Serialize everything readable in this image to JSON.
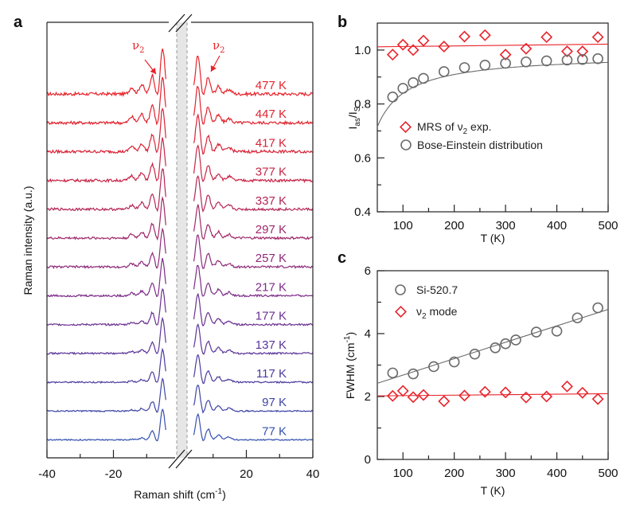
{
  "figure": {
    "panels": [
      "a",
      "b",
      "c"
    ]
  },
  "chart_data": [
    {
      "id": "a",
      "type": "line",
      "panel_label": "a",
      "title": "",
      "xlabel": "Raman shift (cm⁻¹)",
      "xlabel_main": "Raman shift (cm",
      "xlabel_sup": "-1",
      "xlabel_close": ")",
      "ylabel": "Raman intensity (a.u.)",
      "xlim": [
        -40,
        40
      ],
      "axis_break": [
        -5,
        5
      ],
      "xticks": [
        -40,
        -20,
        20,
        40
      ],
      "xtick_labels": [
        "-40",
        "-20",
        "20",
        "40"
      ],
      "minor_xticks": [
        -30,
        -10,
        10,
        30
      ],
      "shaded_band": [
        -2,
        1
      ],
      "annotations": [
        {
          "text": "ν",
          "sub": "2",
          "side": "anti-Stokes",
          "x": -7.5
        },
        {
          "text": "ν",
          "sub": "2",
          "side": "Stokes",
          "x": 7.5
        }
      ],
      "series": [
        {
          "name": "477 K",
          "temperature": 477,
          "color": "#e8232b"
        },
        {
          "name": "447 K",
          "temperature": 447,
          "color": "#e1232f"
        },
        {
          "name": "417 K",
          "temperature": 417,
          "color": "#d82337"
        },
        {
          "name": "377 K",
          "temperature": 377,
          "color": "#c82547"
        },
        {
          "name": "337 K",
          "temperature": 337,
          "color": "#b42654"
        },
        {
          "name": "297 K",
          "temperature": 297,
          "color": "#a0286a"
        },
        {
          "name": "257 K",
          "temperature": 257,
          "color": "#8e2a7a"
        },
        {
          "name": "217 K",
          "temperature": 217,
          "color": "#7c2c88"
        },
        {
          "name": "177 K",
          "temperature": 177,
          "color": "#6a3090"
        },
        {
          "name": "137 K",
          "temperature": 137,
          "color": "#5a3598"
        },
        {
          "name": "117 K",
          "temperature": 117,
          "color": "#4a3a9e"
        },
        {
          "name": "97 K",
          "temperature": 97,
          "color": "#3e44a6"
        },
        {
          "name": "77 K",
          "temperature": 77,
          "color": "#3450ae"
        }
      ]
    },
    {
      "id": "b",
      "type": "scatter",
      "panel_label": "b",
      "xlabel": "T (K)",
      "ylabel_main": "I",
      "ylabel_sub1": "as",
      "ylabel_mid": "/I",
      "ylabel_sub2": "S",
      "xlim": [
        50,
        500
      ],
      "ylim": [
        0.4,
        1.1
      ],
      "xticks": [
        100,
        200,
        300,
        400,
        500
      ],
      "xtick_labels": [
        "100",
        "200",
        "300",
        "400",
        "500"
      ],
      "minor_xticks": [
        150,
        250,
        350,
        450
      ],
      "yticks": [
        0.4,
        0.6,
        0.8,
        1.0
      ],
      "ytick_labels": [
        "0.4",
        "0.6",
        "0.8",
        "1.0"
      ],
      "minor_yticks": [
        0.5,
        0.7,
        0.9
      ],
      "legend_position": "center-left",
      "series": [
        {
          "name": "MRS of ν2 exp.",
          "legend_main": "MRS of ν",
          "legend_sub": "2",
          "legend_tail": " exp.",
          "marker": "diamond",
          "color": "#e8232b",
          "x": [
            80,
            100,
            120,
            140,
            180,
            220,
            260,
            300,
            340,
            380,
            420,
            450,
            480
          ],
          "y": [
            0.983,
            1.02,
            1.0,
            1.035,
            1.013,
            1.05,
            1.055,
            0.983,
            1.005,
            1.048,
            0.995,
            0.995,
            1.048
          ],
          "fit": {
            "type": "linear",
            "x": [
              50,
              500
            ],
            "y": [
              1.012,
              1.022
            ]
          }
        },
        {
          "name": "Bose-Einstein distribution",
          "marker": "circle",
          "color": "#6b6b6b",
          "x": [
            80,
            100,
            120,
            140,
            180,
            220,
            260,
            300,
            340,
            380,
            420,
            450,
            480
          ],
          "y": [
            0.826,
            0.858,
            0.879,
            0.895,
            0.92,
            0.935,
            0.944,
            0.951,
            0.956,
            0.96,
            0.963,
            0.965,
            0.968
          ],
          "fit": {
            "type": "curve"
          }
        }
      ]
    },
    {
      "id": "c",
      "type": "scatter",
      "panel_label": "c",
      "xlabel": "T (K)",
      "ylabel_main": "FWHM (cm",
      "ylabel_sup": "-1",
      "ylabel_close": ")",
      "xlim": [
        50,
        500
      ],
      "ylim": [
        0,
        6
      ],
      "xticks": [
        100,
        200,
        300,
        400,
        500
      ],
      "xtick_labels": [
        "100",
        "200",
        "300",
        "400",
        "500"
      ],
      "minor_xticks": [
        150,
        250,
        350,
        450
      ],
      "yticks": [
        0,
        2,
        4,
        6
      ],
      "ytick_labels": [
        "0",
        "2",
        "4",
        "6"
      ],
      "minor_yticks": [
        1,
        3,
        5
      ],
      "legend_position": "top-left",
      "series": [
        {
          "name": "Si-520.7",
          "marker": "circle",
          "color": "#6b6b6b",
          "x": [
            80,
            120,
            160,
            200,
            240,
            280,
            300,
            320,
            360,
            400,
            440,
            480
          ],
          "y": [
            2.75,
            2.72,
            2.95,
            3.1,
            3.35,
            3.55,
            3.68,
            3.8,
            4.05,
            4.08,
            4.5,
            4.82
          ],
          "fit": {
            "type": "linear",
            "x": [
              50,
              500
            ],
            "y": [
              2.42,
              4.77
            ]
          }
        },
        {
          "name": "ν2 mode",
          "legend_main": "ν",
          "legend_sub": "2",
          "legend_tail": " mode",
          "marker": "diamond",
          "color": "#e8232b",
          "x": [
            80,
            100,
            120,
            140,
            180,
            220,
            260,
            300,
            340,
            380,
            420,
            450,
            480
          ],
          "y": [
            2.02,
            2.18,
            1.98,
            2.05,
            1.85,
            2.03,
            2.15,
            2.13,
            1.97,
            2.0,
            2.32,
            2.12,
            1.92
          ],
          "fit": {
            "type": "linear",
            "x": [
              50,
              500
            ],
            "y": [
              2.02,
              2.09
            ]
          }
        }
      ]
    }
  ]
}
